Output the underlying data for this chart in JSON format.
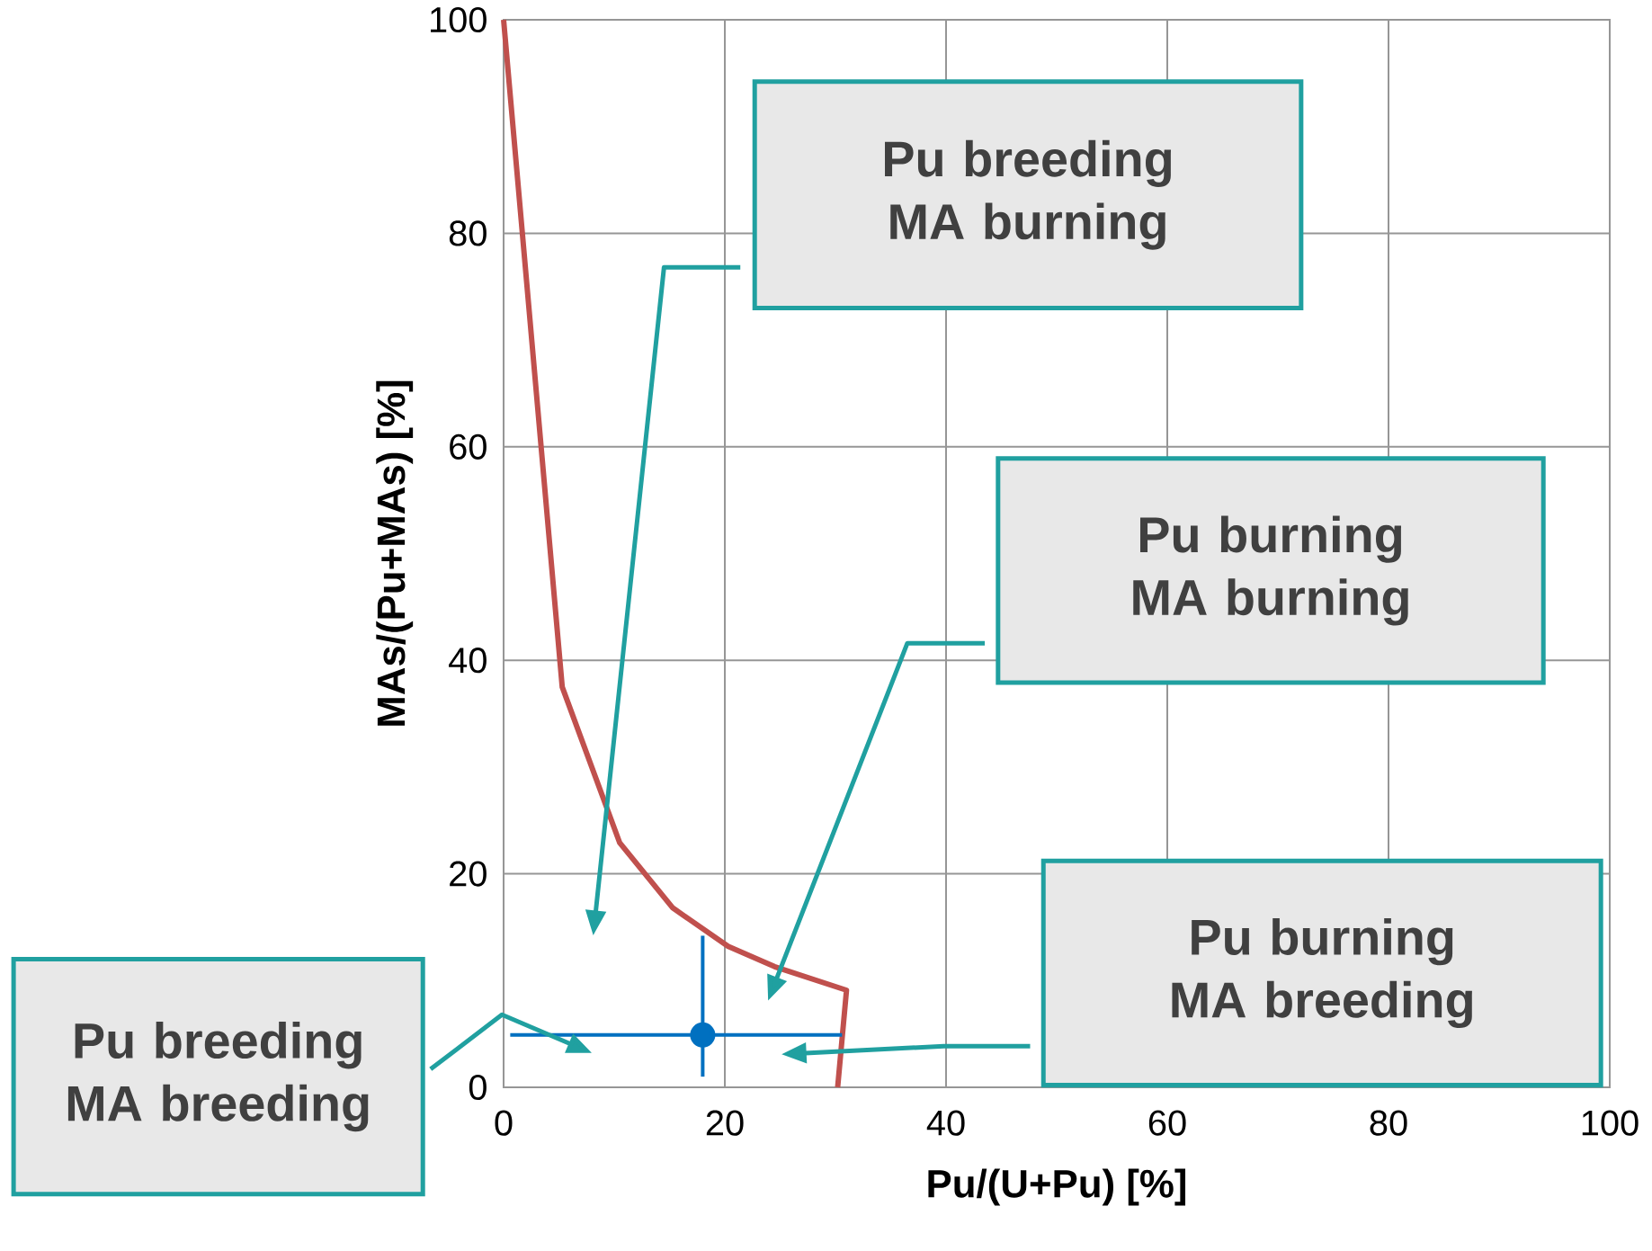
{
  "chart_data": {
    "type": "line",
    "xlabel": "Pu/(U+Pu) [%]",
    "ylabel": "MAs/(Pu+MAs) [%]",
    "xlim": [
      0,
      100
    ],
    "ylim": [
      0,
      100
    ],
    "xticks": [
      0,
      20,
      40,
      60,
      80,
      100
    ],
    "yticks": [
      0,
      20,
      40,
      60,
      80,
      100
    ],
    "grid": true,
    "series": [
      {
        "color": "#c0504d",
        "x": [
          0,
          5.3,
          10.5,
          15.3,
          20.3,
          24.5,
          31,
          30.2
        ],
        "values": [
          100,
          37.5,
          22.9,
          16.8,
          13.2,
          11.3,
          9.1,
          0
        ]
      },
      {
        "type": "scatter",
        "color": "#0070c0",
        "marker": "circle",
        "x": [
          18.0
        ],
        "values": [
          4.9
        ],
        "errors": [
          [
            1.0,
            14.2
          ]
        ],
        "xerrors": [
          [
            0.6,
            30.6
          ]
        ]
      }
    ],
    "annotations": [
      "Pu breeding MA burning",
      "Pu burning MA burning",
      "Pu burning MA breeding",
      "Pu breeding MA breeding"
    ]
  }
}
